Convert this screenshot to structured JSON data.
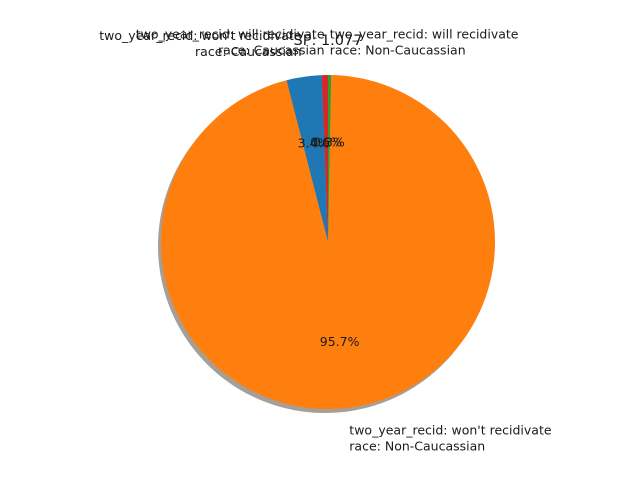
{
  "chart_data": {
    "type": "pie",
    "title": "SP: 1.077",
    "shadow": true,
    "start_angle_deg": 90,
    "direction": "counterclockwise",
    "slices": [
      {
        "label_line1": "two_year_recid: will recidivate",
        "label_line2": "race: Caucassian",
        "percent": 0.6,
        "percent_label": "0.6%",
        "color": "#d62728"
      },
      {
        "label_line1": "two_year_recid: won't recidivate",
        "label_line2": "race: Caucassian",
        "percent": 3.4,
        "percent_label": "3.4%",
        "color": "#1f77b4"
      },
      {
        "label_line1": "two_year_recid: won't recidivate",
        "label_line2": "race: Non-Caucassian",
        "percent": 95.7,
        "percent_label": "95.7%",
        "color": "#ff7f0e"
      },
      {
        "label_line1": "two_year_recid: will recidivate",
        "label_line2": "race: Non-Caucassian",
        "percent": 0.3,
        "percent_label": "0.3%",
        "color": "#2ca02c"
      }
    ]
  }
}
